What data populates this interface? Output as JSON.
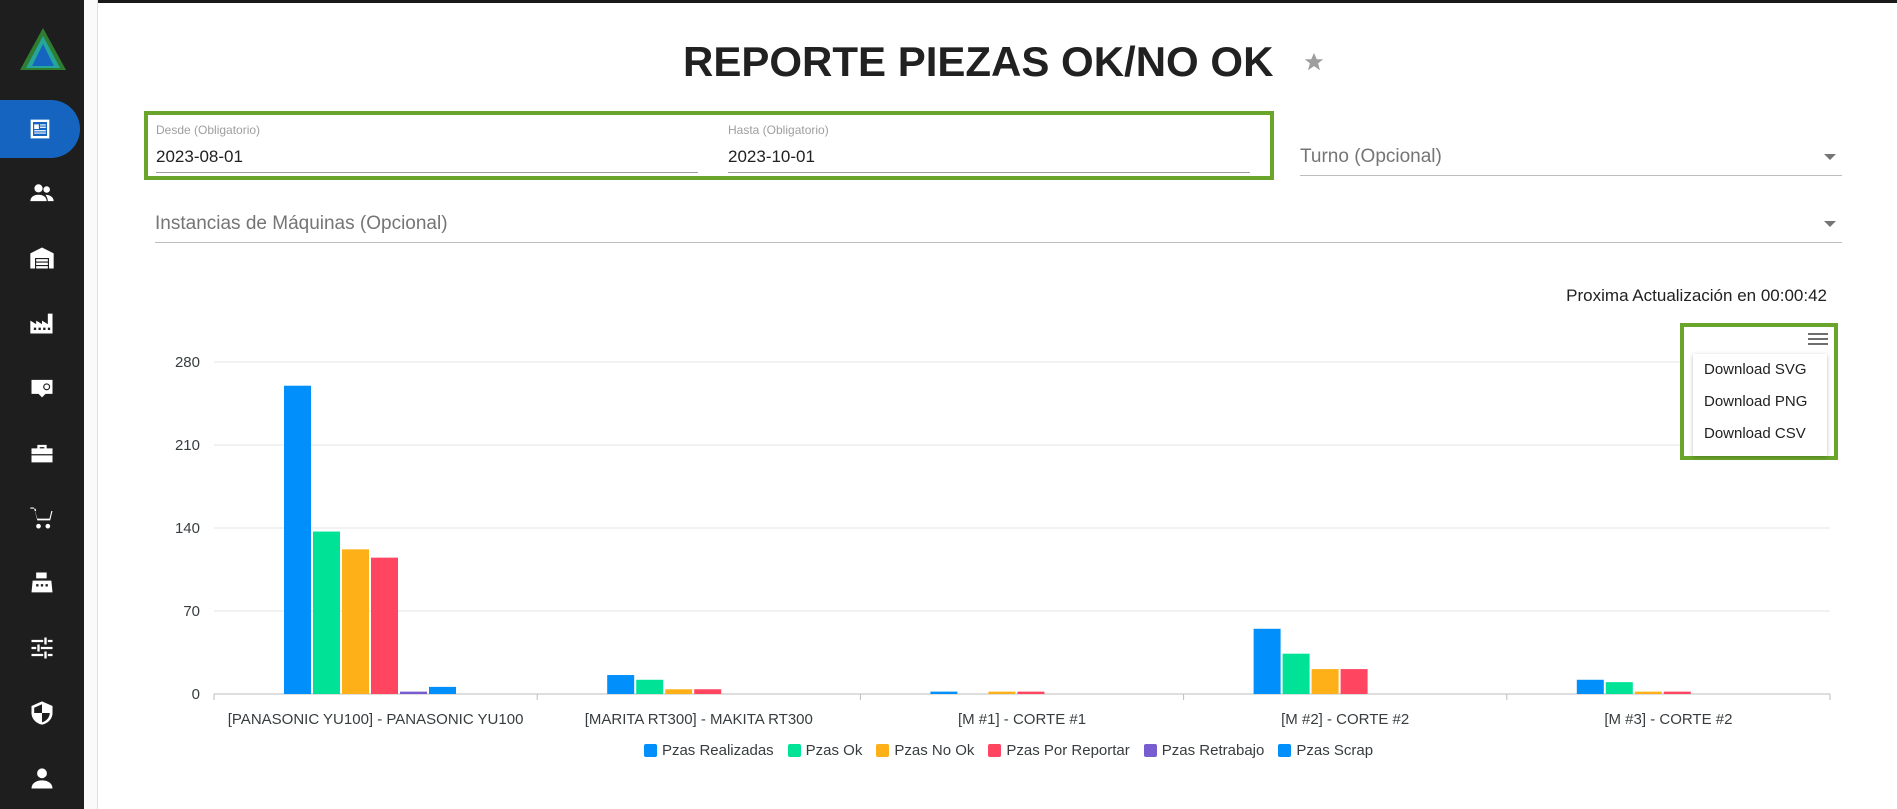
{
  "page": {
    "title": "REPORTE PIEZAS OK/NO OK"
  },
  "filters": {
    "desde": {
      "label": "Desde (Obligatorio)",
      "value": "2023-08-01"
    },
    "hasta": {
      "label": "Hasta (Obligatorio)",
      "value": "2023-10-01"
    },
    "turno": {
      "placeholder": "Turno (Opcional)"
    },
    "instancias": {
      "placeholder": "Instancias de Máquinas (Opcional)"
    }
  },
  "next_update": "Proxima Actualización en 00:00:42",
  "export_menu": {
    "items": [
      "Download SVG",
      "Download PNG",
      "Download CSV"
    ]
  },
  "sidebar": {
    "items": [
      "report-icon",
      "users-icon",
      "warehouse-icon",
      "factory-icon",
      "badge-icon",
      "toolbox-icon",
      "cart-icon",
      "cash-register-icon",
      "sliders-icon",
      "shield-icon",
      "person-icon"
    ]
  },
  "colors": {
    "accent": "#1565c0",
    "highlight": "#6aa52b"
  },
  "chart_data": {
    "type": "bar",
    "categories": [
      "[PANASONIC YU100] - PANASONIC YU100",
      "[MARITA RT300] - MAKITA RT300",
      "[M #1] - CORTE #1",
      "[M #2] - CORTE #2",
      "[M #3] - CORTE #2"
    ],
    "series": [
      {
        "name": "Pzas Realizadas",
        "color": "#008ffb",
        "values": [
          260,
          16,
          2,
          55,
          12
        ]
      },
      {
        "name": "Pzas Ok",
        "color": "#00e396",
        "values": [
          137,
          12,
          0,
          34,
          10
        ]
      },
      {
        "name": "Pzas No Ok",
        "color": "#feb019",
        "values": [
          122,
          4,
          2,
          21,
          2
        ]
      },
      {
        "name": "Pzas Por Reportar",
        "color": "#ff4560",
        "values": [
          115,
          4,
          2,
          21,
          2
        ]
      },
      {
        "name": "Pzas Retrabajo",
        "color": "#775dd0",
        "values": [
          2,
          0,
          0,
          0,
          0
        ]
      },
      {
        "name": "Pzas Scrap",
        "color": "#008ffb",
        "values": [
          6,
          0,
          0,
          0,
          0
        ]
      }
    ],
    "y_ticks": [
      0,
      70,
      140,
      210,
      280
    ],
    "ylim": [
      0,
      280
    ],
    "grid": true,
    "legend_position": "bottom"
  }
}
